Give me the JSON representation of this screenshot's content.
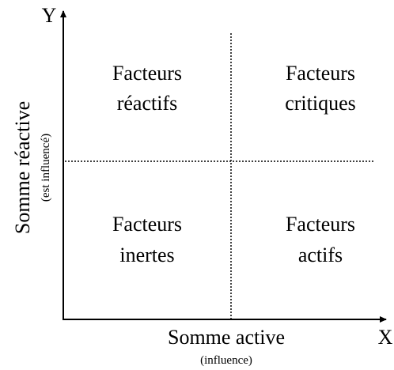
{
  "axes": {
    "y": {
      "letter": "Y",
      "label": "Somme réactive",
      "sublabel": "(est influencé)"
    },
    "x": {
      "letter": "X",
      "label": "Somme active",
      "sublabel": "(influence)"
    }
  },
  "quadrants": [
    {
      "lines": [
        "Facteurs",
        "réactifs"
      ]
    },
    {
      "lines": [
        "Facteurs",
        "critiques"
      ]
    },
    {
      "lines": [
        "Facteurs",
        "inertes"
      ]
    },
    {
      "lines": [
        "Facteurs",
        "actifs"
      ]
    }
  ]
}
